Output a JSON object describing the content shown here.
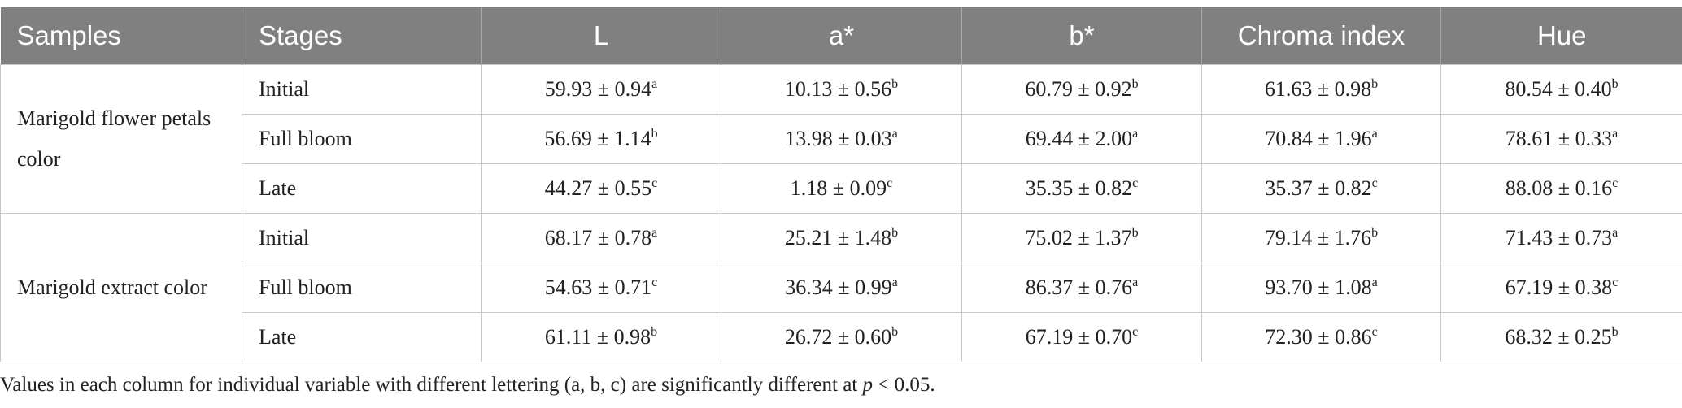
{
  "table": {
    "header": [
      "Samples",
      "Stages",
      "L",
      "a*",
      "b*",
      "Chroma index",
      "Hue"
    ],
    "groups": [
      {
        "sample": "Marigold flower petals color",
        "rows": [
          {
            "stage": "Initial",
            "cells": [
              {
                "value": "59.93 ± 0.94",
                "sup": "a"
              },
              {
                "value": "10.13 ± 0.56",
                "sup": "b"
              },
              {
                "value": "60.79 ± 0.92",
                "sup": "b"
              },
              {
                "value": "61.63 ± 0.98",
                "sup": "b"
              },
              {
                "value": "80.54 ± 0.40",
                "sup": "b"
              }
            ]
          },
          {
            "stage": "Full bloom",
            "cells": [
              {
                "value": "56.69 ± 1.14",
                "sup": "b"
              },
              {
                "value": "13.98 ± 0.03",
                "sup": "a"
              },
              {
                "value": "69.44 ± 2.00",
                "sup": "a"
              },
              {
                "value": "70.84 ± 1.96",
                "sup": "a"
              },
              {
                "value": "78.61 ± 0.33",
                "sup": "a"
              }
            ]
          },
          {
            "stage": "Late",
            "cells": [
              {
                "value": "44.27 ± 0.55",
                "sup": "c"
              },
              {
                "value": "1.18 ± 0.09",
                "sup": "c"
              },
              {
                "value": "35.35 ± 0.82",
                "sup": "c"
              },
              {
                "value": "35.37 ± 0.82",
                "sup": "c"
              },
              {
                "value": "88.08 ± 0.16",
                "sup": "c"
              }
            ]
          }
        ]
      },
      {
        "sample": "Marigold extract color",
        "rows": [
          {
            "stage": "Initial",
            "cells": [
              {
                "value": "68.17 ± 0.78",
                "sup": "a"
              },
              {
                "value": "25.21 ± 1.48",
                "sup": "b"
              },
              {
                "value": "75.02 ± 1.37",
                "sup": "b"
              },
              {
                "value": "79.14 ± 1.76",
                "sup": "b"
              },
              {
                "value": "71.43 ± 0.73",
                "sup": "a"
              }
            ]
          },
          {
            "stage": "Full bloom",
            "cells": [
              {
                "value": "54.63 ± 0.71",
                "sup": "c"
              },
              {
                "value": "36.34 ± 0.99",
                "sup": "a"
              },
              {
                "value": "86.37 ± 0.76",
                "sup": "a"
              },
              {
                "value": "93.70 ± 1.08",
                "sup": "a"
              },
              {
                "value": "67.19 ± 0.38",
                "sup": "c"
              }
            ]
          },
          {
            "stage": "Late",
            "cells": [
              {
                "value": "61.11 ± 0.98",
                "sup": "b"
              },
              {
                "value": "26.72 ± 0.60",
                "sup": "b"
              },
              {
                "value": "67.19 ± 0.70",
                "sup": "c"
              },
              {
                "value": "72.30 ± 0.86",
                "sup": "c"
              },
              {
                "value": "68.32 ± 0.25",
                "sup": "b"
              }
            ]
          }
        ]
      }
    ]
  },
  "footnote": {
    "before": "Values in each column for individual variable with different lettering (a, b, c) are significantly different at ",
    "italic": "p",
    "after": " < 0.05."
  }
}
